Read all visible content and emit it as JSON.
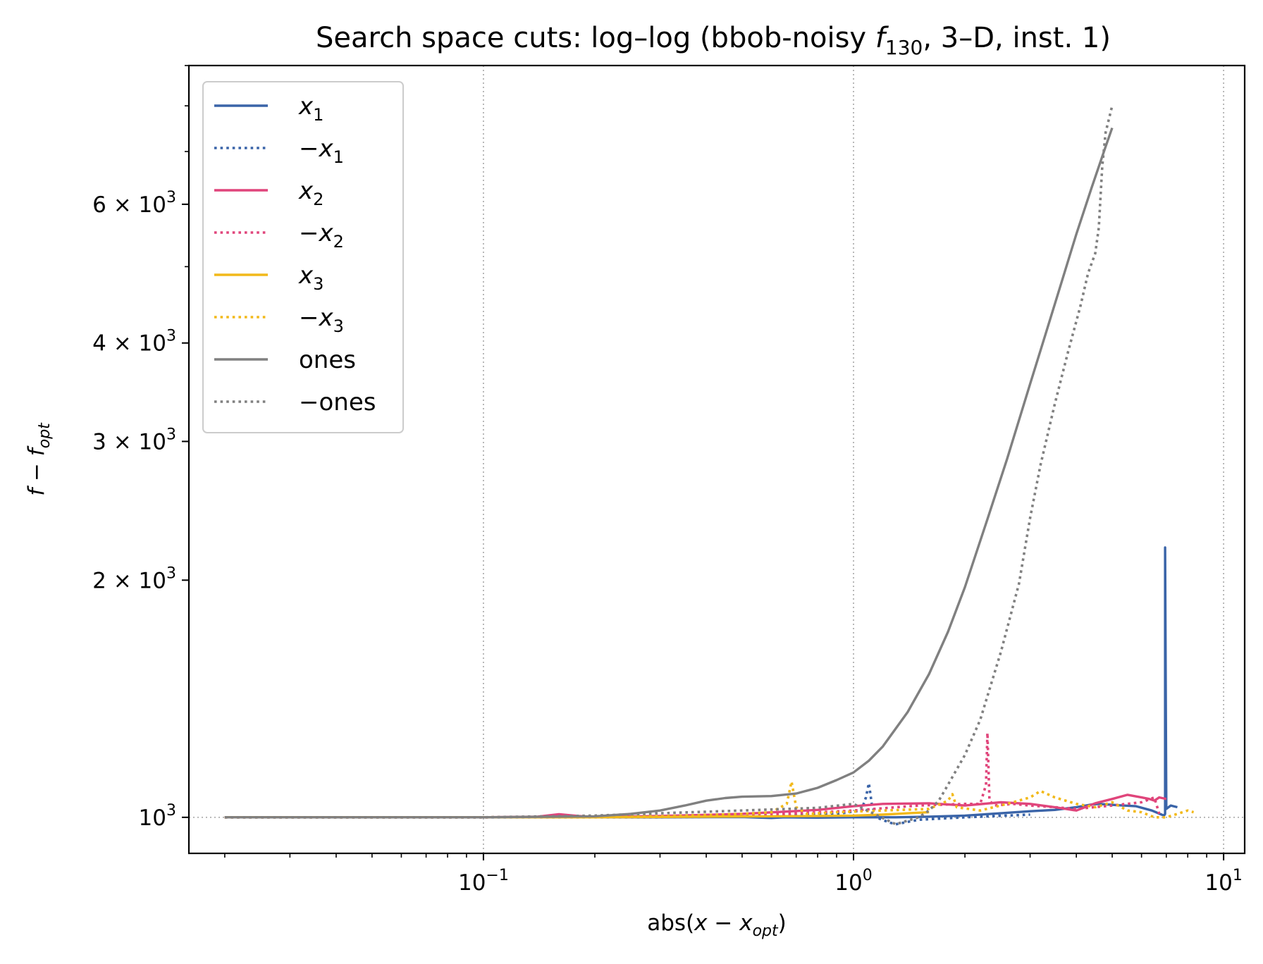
{
  "chart_data": {
    "type": "line",
    "title": {
      "prefix": "Search space cuts: log–log (bbob-noisy ",
      "f_main": "f",
      "f_sub": "130",
      "suffix": ", 3–D, inst. 1)"
    },
    "xlabel": {
      "pre": "abs(",
      "var": "x",
      "minus": " − ",
      "var2": "x",
      "sub": "opt",
      "post": ")"
    },
    "ylabel": {
      "var": "f",
      "minus": " − ",
      "var2": "f",
      "sub": "opt"
    },
    "xscale": "log",
    "yscale": "log",
    "xlim": [
      0.016,
      11.4
    ],
    "ylim": [
      900,
      9000
    ],
    "grid": "dotted, major x ticks and reference line at 1000",
    "legend_position": "upper-left",
    "x_ticks": [
      {
        "value": 0.1,
        "base": "10",
        "exp": "−1"
      },
      {
        "value": 1,
        "base": "10",
        "exp": "0"
      },
      {
        "value": 10,
        "base": "10",
        "exp": "1"
      }
    ],
    "y_ticks": [
      {
        "value": 1000,
        "mant": "",
        "base": "10",
        "exp": "3"
      },
      {
        "value": 2000,
        "mant": "2 × ",
        "base": "10",
        "exp": "3"
      },
      {
        "value": 3000,
        "mant": "3 × ",
        "base": "10",
        "exp": "3"
      },
      {
        "value": 4000,
        "mant": "4 × ",
        "base": "10",
        "exp": "3"
      },
      {
        "value": 6000,
        "mant": "6 × ",
        "base": "10",
        "exp": "3"
      }
    ],
    "series": [
      {
        "name": "x1",
        "label_main": "x",
        "label_sub": "1",
        "label_prefix": "",
        "color": "#3a64a8",
        "style": "solid",
        "x": [
          0.02,
          0.05,
          0.1,
          0.2,
          0.3,
          0.5,
          0.6,
          0.65,
          0.8,
          1.0,
          1.3,
          1.6,
          2.0,
          2.5,
          3.0,
          3.5,
          4.0,
          4.4,
          4.6,
          5.2,
          5.8,
          6.4,
          6.9,
          6.95,
          6.95,
          7.0,
          7.2,
          7.5
        ],
        "y": [
          1000,
          1000,
          1000,
          1000,
          1000,
          1001,
          998,
          1000,
          999,
          1000,
          1000,
          1002,
          1005,
          1012,
          1018,
          1022,
          1030,
          1038,
          1040,
          1036,
          1033,
          1020,
          1005,
          1010,
          2200,
          1025,
          1035,
          1030
        ]
      },
      {
        "name": "-x1",
        "label_main": "x",
        "label_sub": "1",
        "label_prefix": "−",
        "color": "#3a64a8",
        "style": "dotted",
        "x": [
          0.02,
          0.1,
          0.3,
          0.6,
          0.9,
          1.05,
          1.08,
          1.1,
          1.12,
          1.15,
          1.25,
          1.3,
          1.5,
          2.0,
          3.0
        ],
        "y": [
          1000,
          1000,
          1000,
          1003,
          1010,
          1020,
          1060,
          1105,
          1040,
          1000,
          985,
          980,
          993,
          1000,
          1008
        ]
      },
      {
        "name": "x2",
        "label_main": "x",
        "label_sub": "2",
        "label_prefix": "",
        "color": "#e0457b",
        "style": "solid",
        "x": [
          0.02,
          0.1,
          0.14,
          0.16,
          0.18,
          0.2,
          0.3,
          0.5,
          0.8,
          1.0,
          1.2,
          1.6,
          2.0,
          2.5,
          3.0,
          3.5,
          4.0,
          4.5,
          5.0,
          5.5,
          6.0,
          6.3,
          6.5,
          6.7,
          7.0
        ],
        "y": [
          1000,
          1000,
          1002,
          1009,
          1004,
          1001,
          1004,
          1010,
          1022,
          1033,
          1040,
          1042,
          1035,
          1045,
          1040,
          1030,
          1020,
          1042,
          1055,
          1068,
          1060,
          1055,
          1050,
          1060,
          1055
        ]
      },
      {
        "name": "-x2",
        "label_main": "x",
        "label_sub": "2",
        "label_prefix": "−",
        "color": "#e0457b",
        "style": "dotted",
        "x": [
          0.02,
          0.1,
          0.3,
          0.6,
          1.0,
          1.5,
          2.0,
          2.2,
          2.28,
          2.3,
          2.33,
          2.4,
          2.7,
          3.0,
          3.5,
          4.0,
          5.0,
          6.0,
          6.5,
          6.7
        ],
        "y": [
          1000,
          1000,
          1003,
          1008,
          1020,
          1035,
          1040,
          1040,
          1100,
          1280,
          1050,
          1035,
          1040,
          1035,
          1030,
          1025,
          1035,
          1045,
          1060,
          1010
        ]
      },
      {
        "name": "x3",
        "label_main": "x",
        "label_sub": "3",
        "label_prefix": "",
        "color": "#f2b91a",
        "style": "solid",
        "x": [
          0.02,
          0.1,
          0.2,
          0.4,
          0.6,
          0.8,
          1.0,
          1.2,
          1.4,
          1.6
        ],
        "y": [
          1000,
          1000,
          1000,
          1002,
          1003,
          1004,
          1005,
          1008,
          1012,
          1015
        ]
      },
      {
        "name": "-x3",
        "label_main": "x",
        "label_sub": "3",
        "label_prefix": "−",
        "color": "#f2b91a",
        "style": "dotted",
        "x": [
          0.02,
          0.1,
          0.3,
          0.5,
          0.6,
          0.66,
          0.68,
          0.7,
          0.75,
          0.9,
          1.2,
          1.6,
          1.8,
          1.85,
          1.9,
          2.2,
          2.6,
          3.0,
          3.2,
          3.5,
          4.0,
          4.5,
          5.0,
          5.5,
          6.0,
          6.5,
          7.0,
          7.5,
          8.0,
          8.3
        ],
        "y": [
          1000,
          1000,
          1003,
          1010,
          1015,
          1040,
          1110,
          1030,
          1010,
          1015,
          1020,
          1025,
          1050,
          1070,
          1030,
          1020,
          1040,
          1060,
          1080,
          1060,
          1040,
          1030,
          1045,
          1020,
          1015,
          1000,
          1000,
          1010,
          1020,
          1015
        ]
      },
      {
        "name": "ones",
        "label_main": "ones",
        "label_sub": "",
        "label_prefix": "",
        "color": "#808080",
        "style": "solid",
        "x": [
          0.02,
          0.1,
          0.2,
          0.25,
          0.3,
          0.35,
          0.4,
          0.45,
          0.5,
          0.6,
          0.7,
          0.8,
          0.9,
          1.0,
          1.1,
          1.2,
          1.4,
          1.6,
          1.8,
          2.0,
          2.3,
          2.6,
          3.0,
          3.3,
          3.6,
          4.0,
          4.4,
          4.8,
          5.0
        ],
        "y": [
          1000,
          1000,
          1003,
          1010,
          1020,
          1035,
          1050,
          1058,
          1062,
          1064,
          1072,
          1090,
          1115,
          1140,
          1180,
          1230,
          1360,
          1520,
          1720,
          1960,
          2390,
          2850,
          3550,
          4100,
          4680,
          5500,
          6300,
          7100,
          7500
        ]
      },
      {
        "name": "-ones",
        "label_main": "−ones",
        "label_sub": "",
        "label_prefix": "",
        "color": "#808080",
        "style": "dotted",
        "x": [
          0.02,
          0.1,
          0.2,
          0.3,
          0.5,
          0.8,
          1.0,
          1.3,
          1.5,
          1.6,
          1.7,
          1.8,
          2.0,
          2.2,
          2.5,
          2.8,
          3.0,
          3.2,
          3.5,
          3.8,
          4.1,
          4.3,
          4.5,
          4.6,
          4.7,
          4.8,
          5.0
        ],
        "y": [
          1000,
          1000,
          1005,
          1012,
          1020,
          1028,
          1040,
          980,
          1000,
          1020,
          1050,
          1100,
          1200,
          1330,
          1620,
          1980,
          2400,
          2800,
          3350,
          3900,
          4450,
          4900,
          5200,
          5600,
          6700,
          7400,
          8000
        ]
      }
    ]
  }
}
